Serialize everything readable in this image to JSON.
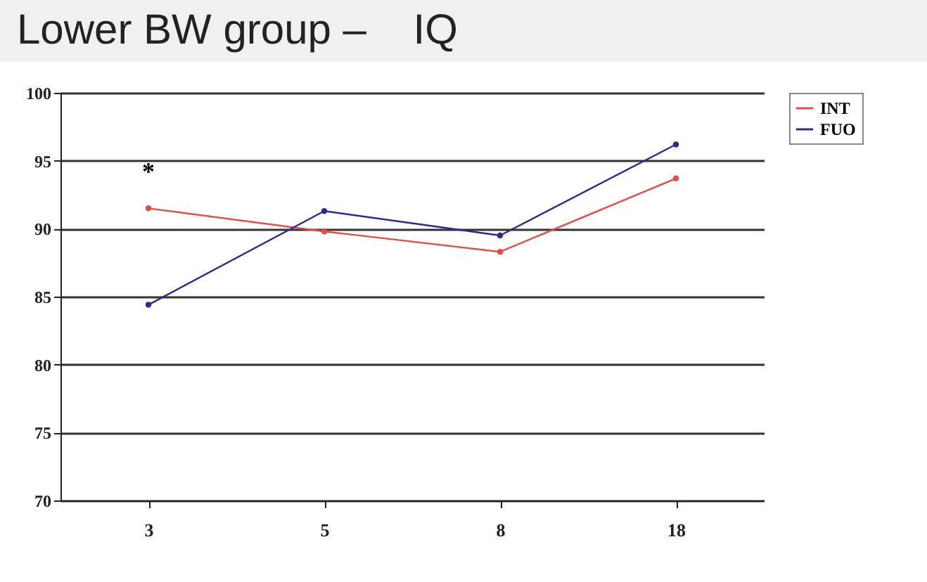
{
  "chart_data": {
    "type": "line",
    "title": "Lower BW group –    IQ",
    "categories": [
      "3",
      "5",
      "8",
      "18"
    ],
    "series": [
      {
        "name": "INT",
        "color": "#e0504a",
        "values": [
          91.5,
          89.8,
          88.3,
          93.7
        ]
      },
      {
        "name": "FUO",
        "color": "#2b2b8c",
        "values": [
          84.4,
          91.3,
          89.5,
          96.2
        ]
      }
    ],
    "ylim": [
      70,
      100
    ],
    "yticks": [
      70,
      75,
      80,
      85,
      90,
      95,
      100
    ],
    "grid": "y",
    "legend": "right",
    "marker": "circle",
    "line_style": "solid",
    "annotations": [
      "*"
    ]
  }
}
